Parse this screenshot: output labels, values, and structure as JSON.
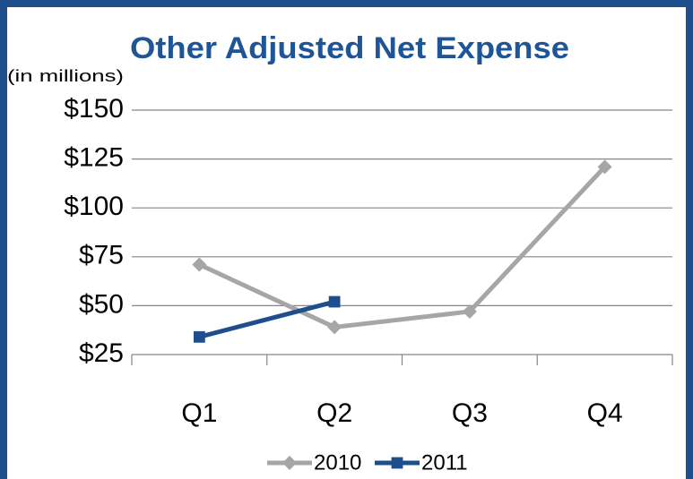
{
  "chart_data": {
    "type": "line",
    "title": "Other Adjusted Net Expense",
    "y_label": "(in millions)",
    "categories": [
      "Q1",
      "Q2",
      "Q3",
      "Q4"
    ],
    "series": [
      {
        "name": "2010",
        "color": "#a6a6a6",
        "marker": "diamond",
        "values": [
          71,
          39,
          47,
          121
        ]
      },
      {
        "name": "2011",
        "color": "#1f4e8c",
        "marker": "square",
        "values": [
          34,
          52,
          null,
          null
        ]
      }
    ],
    "ylim": [
      25,
      150
    ],
    "yticks": [
      {
        "value": 25,
        "label": "$25"
      },
      {
        "value": 50,
        "label": "$50"
      },
      {
        "value": 75,
        "label": "$75"
      },
      {
        "value": 100,
        "label": "$100"
      },
      {
        "value": 125,
        "label": "$125"
      },
      {
        "value": 150,
        "label": "$150"
      }
    ],
    "grid": true,
    "legend": "bottom"
  }
}
